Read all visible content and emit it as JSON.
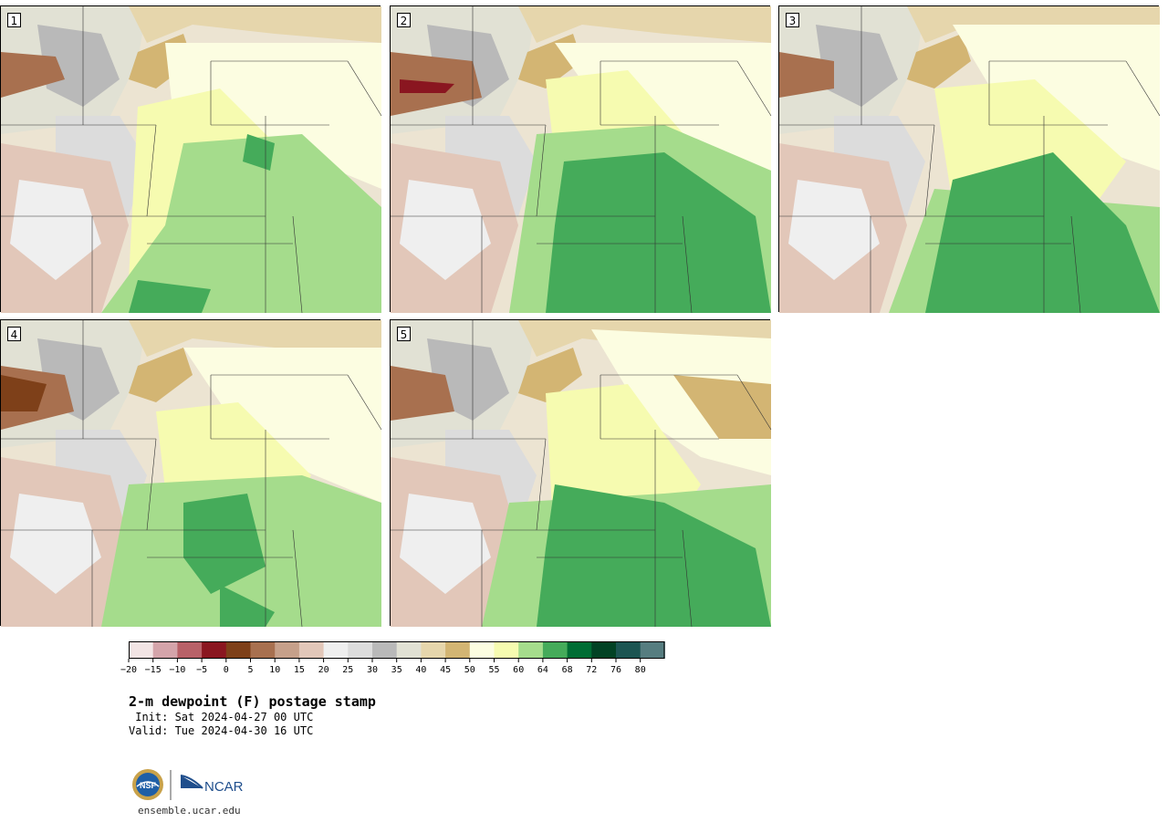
{
  "colors": {
    "map_bg": "#ece4d2",
    "border": "#000000",
    "state_lines": "#333333"
  },
  "panels": [
    {
      "label": "1"
    },
    {
      "label": "2"
    },
    {
      "label": "3"
    },
    {
      "label": "4"
    },
    {
      "label": "5"
    }
  ],
  "colorbar": {
    "bins": [
      {
        "color": "#f2e4e4"
      },
      {
        "color": "#d4a4aa"
      },
      {
        "color": "#b86168"
      },
      {
        "color": "#8a1620"
      },
      {
        "color": "#7e4019"
      },
      {
        "color": "#a8704f"
      },
      {
        "color": "#c6a08a"
      },
      {
        "color": "#e2c7b9"
      },
      {
        "color": "#efefef"
      },
      {
        "color": "#dcdcdc"
      },
      {
        "color": "#b9b9b9"
      },
      {
        "color": "#e1e1d4"
      },
      {
        "color": "#e6d6ac"
      },
      {
        "color": "#d3b573"
      },
      {
        "color": "#fcfde1"
      },
      {
        "color": "#f6fbb0"
      },
      {
        "color": "#a5dc8c"
      },
      {
        "color": "#45ab5a"
      },
      {
        "color": "#006d34"
      },
      {
        "color": "#024224"
      },
      {
        "color": "#1c5552"
      },
      {
        "color": "#567d80"
      }
    ],
    "ticks": [
      "−20",
      "−15",
      "−10",
      "−5",
      "0",
      "5",
      "10",
      "15",
      "20",
      "25",
      "30",
      "35",
      "40",
      "45",
      "50",
      "55",
      "60",
      "64",
      "68",
      "72",
      "76",
      "80"
    ]
  },
  "title": "2-m dewpoint (F) postage stamp",
  "init": " Init: Sat 2024-04-27 00 UTC",
  "valid": "Valid: Tue 2024-04-30 16 UTC",
  "logo_nsf": "NSF",
  "logo_ncar": "NCAR",
  "website": "ensemble.ucar.edu"
}
